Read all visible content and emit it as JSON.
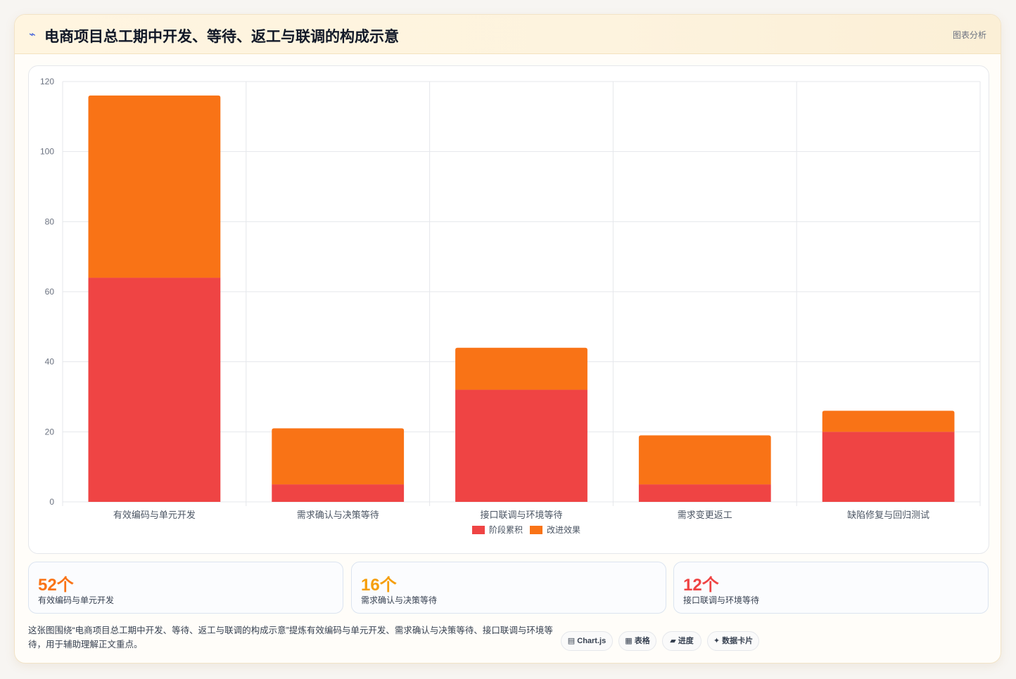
{
  "header": {
    "icon": "chart-icon",
    "title": "电商项目总工期中开发、等待、返工与联调的构成示意",
    "link": "图表分析"
  },
  "chart_data": {
    "type": "bar",
    "stacked": true,
    "categories": [
      "有效编码与单元开发",
      "需求确认与决策等待",
      "接口联调与环境等待",
      "需求变更返工",
      "缺陷修复与回归测试"
    ],
    "series": [
      {
        "name": "阶段累积",
        "color": "#ef4444",
        "values": [
          64,
          5,
          32,
          5,
          20
        ]
      },
      {
        "name": "改进效果",
        "color": "#f97316",
        "values": [
          52,
          16,
          12,
          14,
          6
        ]
      }
    ],
    "ylim": [
      0,
      120
    ],
    "yticks": [
      "0",
      "20",
      "40",
      "60",
      "80",
      "100",
      "120"
    ],
    "grid": true,
    "legend": "bottom"
  },
  "stats": [
    {
      "value": "52个",
      "label": "有效编码与单元开发",
      "color": "#f97316"
    },
    {
      "value": "16个",
      "label": "需求确认与决策等待",
      "color": "#f59e0b"
    },
    {
      "value": "12个",
      "label": "接口联调与环境等待",
      "color": "#ef4444"
    }
  ],
  "note": "这张图围绕“电商项目总工期中开发、等待、返工与联调的构成示意”提炼有效编码与单元开发、需求确认与决策等待、接口联调与环境等待，用于辅助理解正文重点。",
  "chips": [
    {
      "icon": "▤",
      "label": "Chart.js"
    },
    {
      "icon": "▦",
      "label": "表格"
    },
    {
      "icon": "▰",
      "label": "进度"
    },
    {
      "icon": "✦",
      "label": "数据卡片"
    }
  ]
}
